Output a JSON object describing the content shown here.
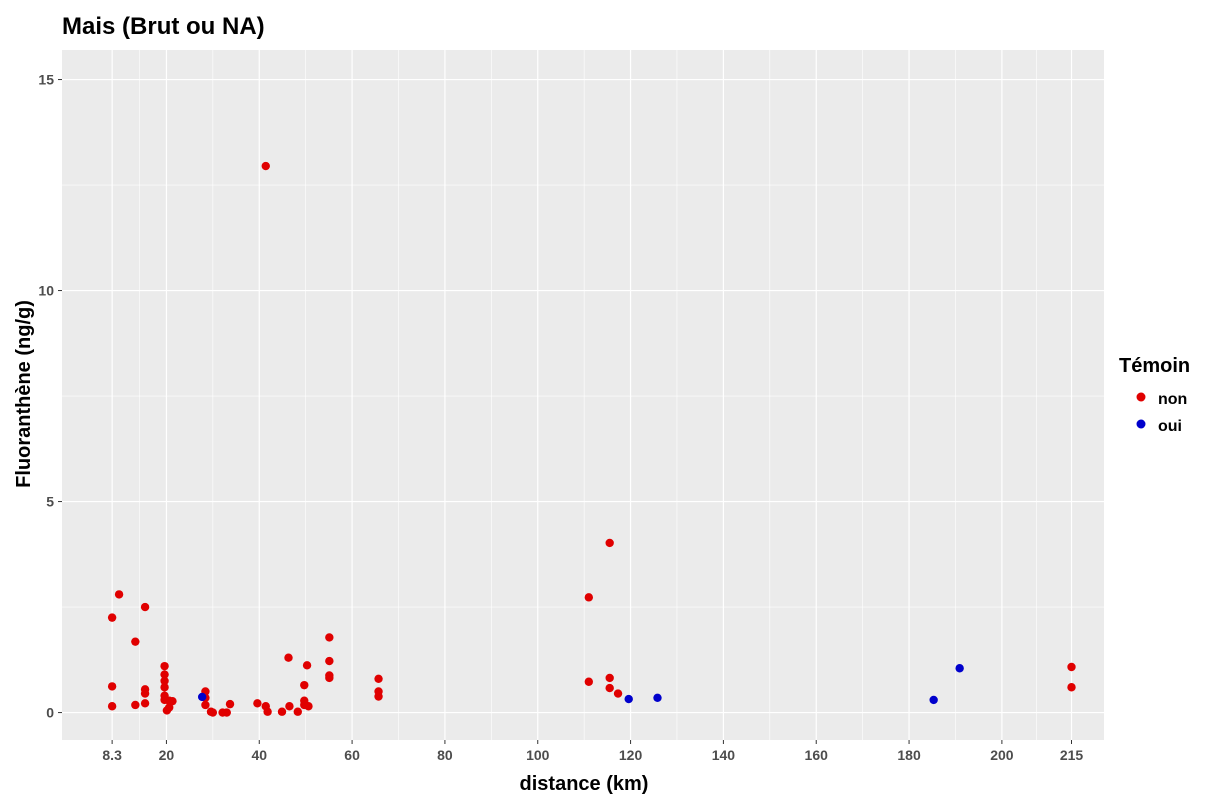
{
  "chart_data": {
    "type": "scatter",
    "title": "Mais (Brut ou NA)",
    "xlabel": "distance (km)",
    "ylabel": "Fluoranthène (ng/g)",
    "xlim": [
      -2.5,
      222
    ],
    "ylim": [
      -0.65,
      15.7
    ],
    "x_ticks": [
      {
        "value": 8.3,
        "label": "8.3"
      },
      {
        "value": 20,
        "label": "20"
      },
      {
        "value": 40,
        "label": "40"
      },
      {
        "value": 60,
        "label": "60"
      },
      {
        "value": 80,
        "label": "80"
      },
      {
        "value": 100,
        "label": "100"
      },
      {
        "value": 120,
        "label": "120"
      },
      {
        "value": 140,
        "label": "140"
      },
      {
        "value": 160,
        "label": "160"
      },
      {
        "value": 180,
        "label": "180"
      },
      {
        "value": 200,
        "label": "200"
      },
      {
        "value": 215,
        "label": "215"
      }
    ],
    "y_ticks": [
      {
        "value": 0,
        "label": "0"
      },
      {
        "value": 5,
        "label": "5"
      },
      {
        "value": 10,
        "label": "10"
      },
      {
        "value": 15,
        "label": "15"
      }
    ],
    "grid": true,
    "panel_color": "#ebebeb",
    "legend": {
      "title": "Témoin",
      "position": "right",
      "entries": [
        {
          "label": "non",
          "color": "#e00000"
        },
        {
          "label": "oui",
          "color": "#0000cc"
        }
      ]
    },
    "series": [
      {
        "name": "non",
        "color": "#e00000",
        "points": [
          [
            8.3,
            2.25
          ],
          [
            8.3,
            0.62
          ],
          [
            8.3,
            0.15
          ],
          [
            9.8,
            2.8
          ],
          [
            13.3,
            1.68
          ],
          [
            13.3,
            0.18
          ],
          [
            15.4,
            2.5
          ],
          [
            15.4,
            0.55
          ],
          [
            15.4,
            0.45
          ],
          [
            15.4,
            0.22
          ],
          [
            19.6,
            1.1
          ],
          [
            19.6,
            0.9
          ],
          [
            19.6,
            0.75
          ],
          [
            19.6,
            0.6
          ],
          [
            19.6,
            0.4
          ],
          [
            19.6,
            0.3
          ],
          [
            20.1,
            0.05
          ],
          [
            20.6,
            0.12
          ],
          [
            20.6,
            0.28
          ],
          [
            21.3,
            0.27
          ],
          [
            28.4,
            0.5
          ],
          [
            28.4,
            0.35
          ],
          [
            28.4,
            0.18
          ],
          [
            29.6,
            0.02
          ],
          [
            30.0,
            0.0
          ],
          [
            32.1,
            0.0
          ],
          [
            33.0,
            0.0
          ],
          [
            33.7,
            0.2
          ],
          [
            39.6,
            0.22
          ],
          [
            41.4,
            12.95
          ],
          [
            41.4,
            0.15
          ],
          [
            41.8,
            0.02
          ],
          [
            44.9,
            0.02
          ],
          [
            46.3,
            1.3
          ],
          [
            46.5,
            0.15
          ],
          [
            48.3,
            0.02
          ],
          [
            49.7,
            0.65
          ],
          [
            49.7,
            0.28
          ],
          [
            49.7,
            0.18
          ],
          [
            50.3,
            1.12
          ],
          [
            50.6,
            0.15
          ],
          [
            55.1,
            1.78
          ],
          [
            55.1,
            1.22
          ],
          [
            55.1,
            0.88
          ],
          [
            55.1,
            0.82
          ],
          [
            65.7,
            0.8
          ],
          [
            65.7,
            0.5
          ],
          [
            65.7,
            0.38
          ],
          [
            111.0,
            2.73
          ],
          [
            111.0,
            0.73
          ],
          [
            115.5,
            4.02
          ],
          [
            115.5,
            0.82
          ],
          [
            115.5,
            0.58
          ],
          [
            117.3,
            0.45
          ],
          [
            215,
            1.08
          ],
          [
            215,
            0.6
          ]
        ]
      },
      {
        "name": "oui",
        "color": "#0000cc",
        "points": [
          [
            27.7,
            0.37
          ],
          [
            119.6,
            0.32
          ],
          [
            125.8,
            0.35
          ],
          [
            185.3,
            0.3
          ],
          [
            190.9,
            1.05
          ]
        ]
      }
    ]
  }
}
